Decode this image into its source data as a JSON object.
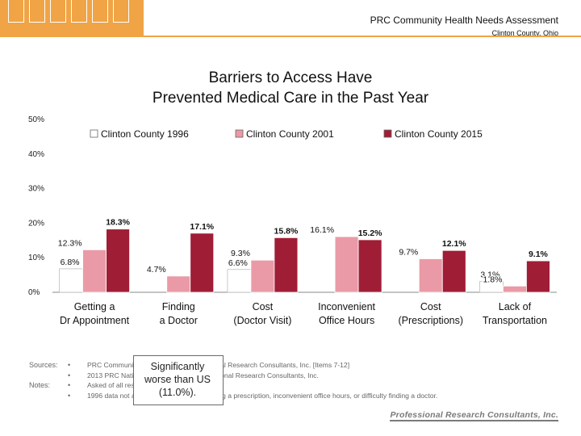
{
  "header": {
    "report_title": "PRC Community Health Needs Assessment",
    "location": "Clinton County, Ohio"
  },
  "chart_data": {
    "type": "bar",
    "title_line1": "Barriers to Access Have",
    "title_line2": "Prevented Medical Care in the Past Year",
    "categories": [
      [
        "Getting a",
        "Dr Appointment"
      ],
      [
        "Finding",
        "a Doctor"
      ],
      [
        "Cost",
        "(Doctor Visit)"
      ],
      [
        "Inconvenient",
        "Office Hours"
      ],
      [
        "Cost",
        "(Prescriptions)"
      ],
      [
        "Lack of",
        "Transportation"
      ]
    ],
    "series": [
      {
        "name": "Clinton County 1996",
        "color": "#ffffff",
        "values": [
          6.8,
          null,
          6.6,
          null,
          null,
          3.1
        ],
        "labels": [
          "6.8%",
          "",
          "6.6%",
          "",
          "",
          "3.1%"
        ]
      },
      {
        "name": "Clinton County 2001",
        "color": "#ea9aa6",
        "values": [
          12.3,
          4.7,
          9.3,
          16.1,
          9.7,
          1.8
        ],
        "labels": [
          "12.3%",
          "4.7%",
          "9.3%",
          "16.1%",
          "9.7%",
          "1.8%"
        ]
      },
      {
        "name": "Clinton County 2015",
        "color": "#a01d36",
        "values": [
          18.3,
          17.1,
          15.8,
          15.2,
          12.1,
          9.1
        ],
        "labels": [
          "18.3%",
          "17.1%",
          "15.8%",
          "15.2%",
          "12.1%",
          "9.1%"
        ]
      }
    ],
    "yticks": [
      "0%",
      "10%",
      "20%",
      "30%",
      "40%",
      "50%"
    ],
    "ylim": [
      0,
      50
    ],
    "grid": false,
    "legend_position": "top"
  },
  "footnotes": {
    "labels": [
      "Sources:",
      "",
      "Notes:",
      ""
    ],
    "bullets": [
      "•",
      "•",
      "•",
      "•"
    ],
    "lines": [
      "PRC Community Health Survey, Professional Research Consultants, Inc. [Items 7-12]",
      "2013 PRC National Health Survey, Professional Research Consultants, Inc.",
      "Asked of all respondents.",
      "1996 data not available for difficulty obtaining a prescription, inconvenient office hours, or difficulty finding a doctor."
    ]
  },
  "callout": {
    "line1": "Significantly",
    "line2": "worse than US",
    "line3": "(11.0%)."
  },
  "footer_logo": "Professional Research Consultants, Inc."
}
